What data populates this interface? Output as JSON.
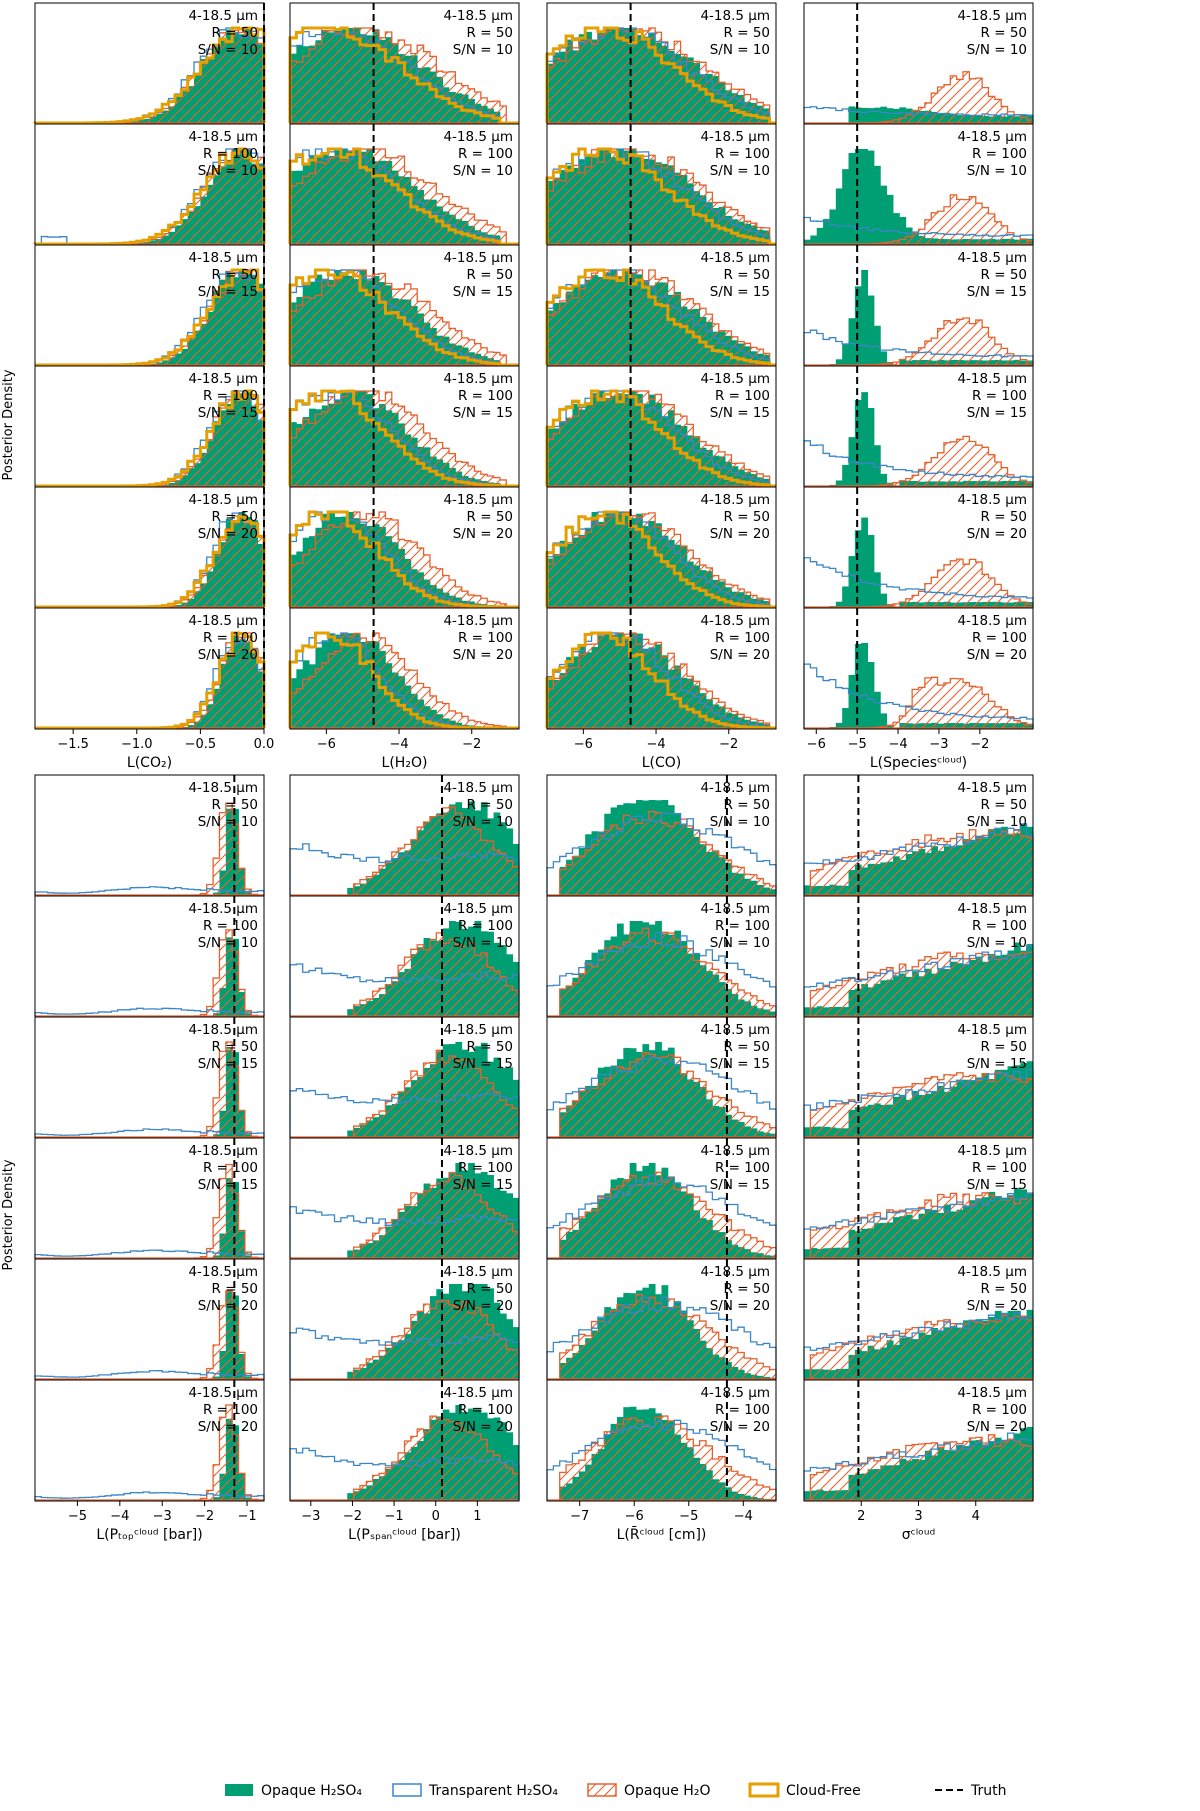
{
  "figure": {
    "y_axis_label": "Posterior Density",
    "colors": {
      "opaque_h2so4": "#009e73",
      "transparent_h2so4": "#3a86c8",
      "opaque_h2o": "#e8602c",
      "cloud_free": "#e69f00",
      "truth": "#000000"
    },
    "legend": [
      {
        "key": "opaque_h2so4",
        "label": "Opaque H₂SO₄"
      },
      {
        "key": "transparent_h2so4",
        "label": "Transparent H₂SO₄"
      },
      {
        "key": "opaque_h2o",
        "label": "Opaque H₂O"
      },
      {
        "key": "cloud_free",
        "label": "Cloud-Free"
      },
      {
        "key": "truth",
        "label": "Truth"
      }
    ],
    "rows": [
      {
        "band": "4-18.5 μm",
        "r": "R = 50",
        "sn": "S/N = 10"
      },
      {
        "band": "4-18.5 μm",
        "r": "R = 100",
        "sn": "S/N = 10"
      },
      {
        "band": "4-18.5 μm",
        "r": "R = 50",
        "sn": "S/N = 15"
      },
      {
        "band": "4-18.5 μm",
        "r": "R = 100",
        "sn": "S/N = 15"
      },
      {
        "band": "4-18.5 μm",
        "r": "R = 50",
        "sn": "S/N = 20"
      },
      {
        "band": "4-18.5 μm",
        "r": "R = 100",
        "sn": "S/N = 20"
      }
    ]
  },
  "chart_data": [
    {
      "type": "histogram",
      "group": "top",
      "xlabel": "L(CO₂)",
      "xlim": [
        -1.8,
        0.0
      ],
      "xticks": [
        -1.5,
        -1.0,
        -0.5,
        0.0
      ],
      "tick_labels": [
        "−1.5",
        "−1.0",
        "−0.5",
        "0.0"
      ],
      "truth": 0.0,
      "series": [
        "opaque_h2so4",
        "transparent_h2so4",
        "opaque_h2o",
        "cloud_free"
      ]
    },
    {
      "type": "histogram",
      "group": "top",
      "xlabel": "L(H₂O)",
      "xlim": [
        -7.0,
        -0.7
      ],
      "xticks": [
        -6,
        -4,
        -2
      ],
      "tick_labels": [
        "−6",
        "−4",
        "−2"
      ],
      "truth": -4.7,
      "series": [
        "opaque_h2so4",
        "transparent_h2so4",
        "opaque_h2o",
        "cloud_free"
      ]
    },
    {
      "type": "histogram",
      "group": "top",
      "xlabel": "L(CO)",
      "xlim": [
        -7.0,
        -0.7
      ],
      "xticks": [
        -6,
        -4,
        -2
      ],
      "tick_labels": [
        "−6",
        "−4",
        "−2"
      ],
      "truth": -4.7,
      "series": [
        "opaque_h2so4",
        "transparent_h2so4",
        "opaque_h2o",
        "cloud_free"
      ]
    },
    {
      "type": "histogram",
      "group": "top",
      "xlabel": "L(Speciesᶜˡᵒᵘᵈ)",
      "xlim": [
        -6.3,
        -0.7
      ],
      "xticks": [
        -6,
        -5,
        -4,
        -3,
        -2
      ],
      "tick_labels": [
        "−6",
        "−5",
        "−4",
        "−3",
        "−2"
      ],
      "truth": -5.0,
      "series": [
        "opaque_h2so4",
        "transparent_h2so4",
        "opaque_h2o"
      ]
    },
    {
      "type": "histogram",
      "group": "bottom",
      "xlabel": "L(Pₜₒₚᶜˡᵒᵘᵈ [bar])",
      "xlim": [
        -6.0,
        -0.6
      ],
      "xticks": [
        -5,
        -4,
        -3,
        -2,
        -1
      ],
      "tick_labels": [
        "−5",
        "−4",
        "−3",
        "−2",
        "−1"
      ],
      "truth": -1.3,
      "series": [
        "opaque_h2so4",
        "transparent_h2so4",
        "opaque_h2o"
      ]
    },
    {
      "type": "histogram",
      "group": "bottom",
      "xlabel": "L(Pₛₚₐₙᶜˡᵒᵘᵈ [bar])",
      "xlim": [
        -3.5,
        2.0
      ],
      "xticks": [
        -3,
        -2,
        -1,
        0,
        1
      ],
      "tick_labels": [
        "−3",
        "−2",
        "−1",
        "0",
        "1"
      ],
      "truth": 0.15,
      "series": [
        "opaque_h2so4",
        "transparent_h2so4",
        "opaque_h2o"
      ]
    },
    {
      "type": "histogram",
      "group": "bottom",
      "xlabel": "L(R̄ᶜˡᵒᵘᵈ [cm])",
      "xlim": [
        -7.6,
        -3.4
      ],
      "xticks": [
        -7,
        -6,
        -5,
        -4
      ],
      "tick_labels": [
        "−7",
        "−6",
        "−5",
        "−4"
      ],
      "truth": -4.3,
      "series": [
        "opaque_h2so4",
        "transparent_h2so4",
        "opaque_h2o"
      ]
    },
    {
      "type": "histogram",
      "group": "bottom",
      "xlabel": "σᶜˡᵒᵘᵈ",
      "xlim": [
        1.0,
        5.0
      ],
      "xticks": [
        2,
        3,
        4
      ],
      "tick_labels": [
        "2",
        "3",
        "4"
      ],
      "truth": 1.95,
      "series": [
        "opaque_h2so4",
        "transparent_h2so4",
        "opaque_h2o"
      ]
    }
  ]
}
